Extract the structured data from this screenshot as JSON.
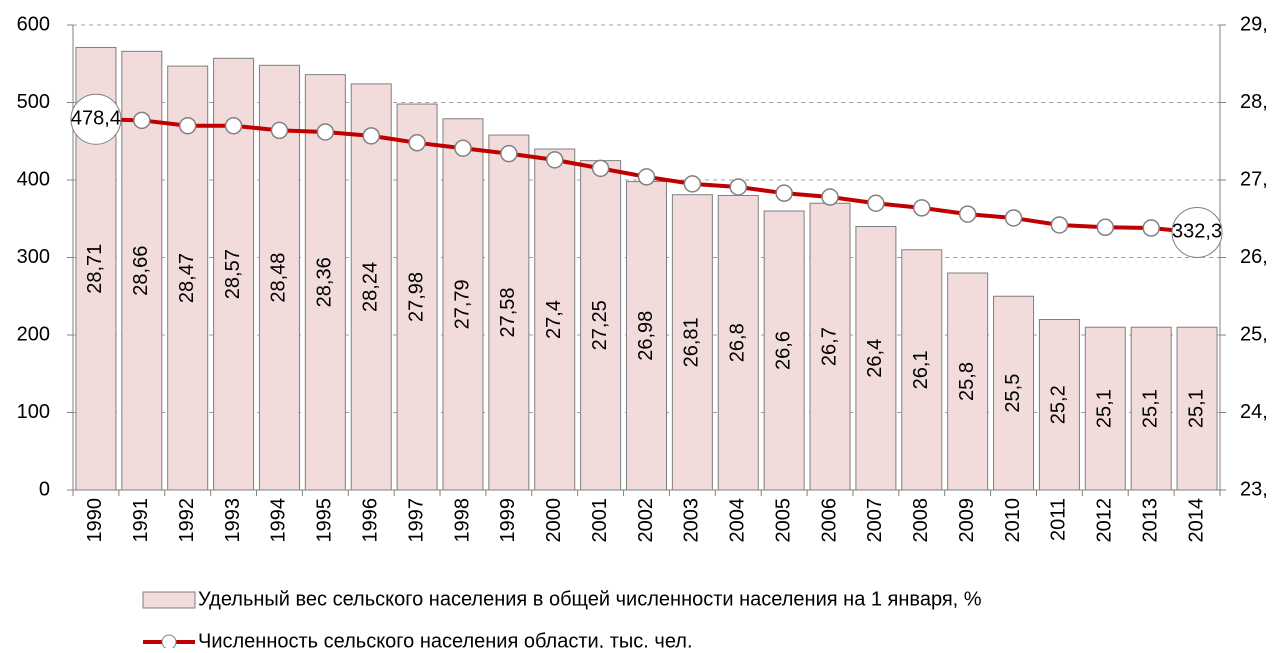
{
  "chart_data": {
    "type": "bar-line",
    "categories": [
      "1990",
      "1991",
      "1992",
      "1993",
      "1994",
      "1995",
      "1996",
      "1997",
      "1998",
      "1999",
      "2000",
      "2001",
      "2002",
      "2003",
      "2004",
      "2005",
      "2006",
      "2007",
      "2008",
      "2009",
      "2010",
      "2011",
      "2012",
      "2013",
      "2014"
    ],
    "series": [
      {
        "name": "Удельный вес сельского населения в общей численности населения на 1 января, %",
        "type": "bar",
        "axis": "y2",
        "color": "#f2dcdb",
        "values": [
          28.71,
          28.66,
          28.47,
          28.57,
          28.48,
          28.36,
          28.24,
          27.98,
          27.79,
          27.58,
          27.4,
          27.25,
          26.98,
          26.81,
          26.8,
          26.6,
          26.7,
          26.4,
          26.1,
          25.8,
          25.5,
          25.2,
          25.1,
          25.1,
          25.1
        ],
        "value_labels": [
          "28,71",
          "28,66",
          "28,47",
          "28,57",
          "28,48",
          "28,36",
          "28,24",
          "27,98",
          "27,79",
          "27,58",
          "27,4",
          "27,25",
          "26,98",
          "26,81",
          "26,8",
          "26,6",
          "26,7",
          "26,4",
          "26,1",
          "25,8",
          "25,5",
          "25,2",
          "25,1",
          "25,1",
          "25,1"
        ]
      },
      {
        "name": "Численность сельского населения области, тыс. чел.",
        "type": "line",
        "color": "#c00000",
        "values": [
          478.4,
          477,
          470,
          470,
          464,
          462,
          457,
          448,
          441,
          434,
          426,
          415,
          404,
          395,
          391,
          383,
          378,
          370,
          364,
          356,
          351,
          342,
          339,
          338,
          332.3
        ],
        "value_labels": [
          "478,4",
          null,
          null,
          null,
          null,
          null,
          null,
          null,
          null,
          null,
          null,
          null,
          null,
          null,
          null,
          null,
          null,
          null,
          null,
          null,
          null,
          null,
          null,
          null,
          "332,3"
        ]
      }
    ],
    "ylim": [
      0,
      600
    ],
    "yticks": [
      0,
      100,
      200,
      300,
      400,
      500,
      600
    ],
    "y2lim": [
      23,
      29
    ],
    "y2ticks": [
      {
        "value": 23,
        "label": "23,"
      },
      {
        "value": 24,
        "label": "24,"
      },
      {
        "value": 25,
        "label": "25,"
      },
      {
        "value": 26,
        "label": "26,"
      },
      {
        "value": 27,
        "label": "27,"
      },
      {
        "value": 28,
        "label": "28,"
      },
      {
        "value": 29,
        "label": "29,"
      }
    ],
    "grid": true,
    "legend": "bottom"
  }
}
